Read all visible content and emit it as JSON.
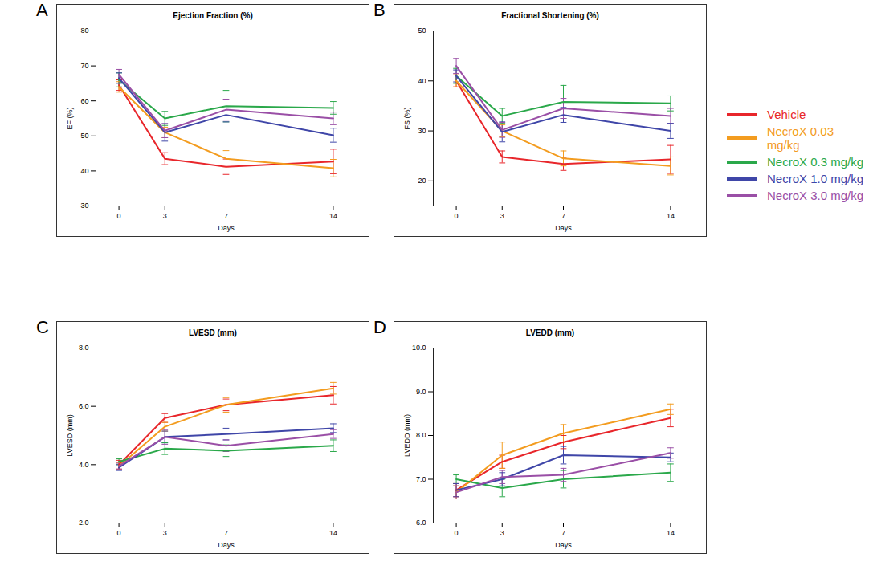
{
  "chart_data": [
    {
      "type": "line",
      "panel_label": "A",
      "title": "Ejection Fraction (%)",
      "x_label": "Days",
      "y_label": "EF (%)",
      "x": [
        0,
        3,
        7,
        14
      ],
      "xlim": [
        -1.5,
        15.5
      ],
      "xticks": [
        0,
        3,
        7,
        14
      ],
      "ylim": [
        30,
        80
      ],
      "yticks": [
        30,
        40,
        50,
        60,
        70,
        80
      ],
      "legend": "right",
      "series": [
        {
          "name": "Vehicle",
          "color": "#e8262b",
          "values": [
            64.5,
            43.5,
            41.2,
            42.7
          ],
          "errors": [
            1.5,
            1.7,
            2.2,
            3.5
          ]
        },
        {
          "name": "NecroX 0.03 mg/kg",
          "color": "#f39c1f",
          "values": [
            64.0,
            51.0,
            43.5,
            40.8
          ],
          "errors": [
            1.5,
            1.5,
            2.3,
            2.5
          ]
        },
        {
          "name": "NecroX 0.3 mg/kg",
          "color": "#2aa84a",
          "values": [
            66.0,
            55.0,
            58.5,
            58.0
          ],
          "errors": [
            2.0,
            2.0,
            4.5,
            1.8
          ]
        },
        {
          "name": "NecroX 1.0 mg/kg",
          "color": "#3f46a8",
          "values": [
            66.5,
            51.0,
            56.0,
            50.2
          ],
          "errors": [
            1.5,
            2.5,
            2.0,
            2.0
          ]
        },
        {
          "name": "NecroX 3.0 mg/kg",
          "color": "#9a4fa6",
          "values": [
            67.5,
            51.5,
            57.5,
            55.0
          ],
          "errors": [
            1.5,
            2.0,
            3.0,
            1.8
          ]
        }
      ]
    },
    {
      "type": "line",
      "panel_label": "B",
      "title": "Fractional Shortening (%)",
      "x_label": "Days",
      "y_label": "FS (%)",
      "x": [
        0,
        3,
        7,
        14
      ],
      "xlim": [
        -1.5,
        15.5
      ],
      "xticks": [
        0,
        3,
        7,
        14
      ],
      "ylim": [
        15,
        50
      ],
      "yticks": [
        20,
        30,
        40,
        50
      ],
      "series": [
        {
          "name": "Vehicle",
          "color": "#e8262b",
          "values": [
            40.0,
            24.8,
            23.4,
            24.3
          ],
          "errors": [
            1.2,
            1.2,
            1.3,
            2.8
          ]
        },
        {
          "name": "NecroX 0.03 mg/kg",
          "color": "#f39c1f",
          "values": [
            40.0,
            30.0,
            24.5,
            23.0
          ],
          "errors": [
            1.2,
            1.2,
            1.5,
            1.8
          ]
        },
        {
          "name": "NecroX 0.3 mg/kg",
          "color": "#2aa84a",
          "values": [
            41.0,
            33.0,
            35.8,
            35.5
          ],
          "errors": [
            1.5,
            1.5,
            3.3,
            1.5
          ]
        },
        {
          "name": "NecroX 1.0 mg/kg",
          "color": "#3f46a8",
          "values": [
            41.0,
            29.8,
            33.2,
            30.0
          ],
          "errors": [
            1.2,
            2.0,
            1.5,
            1.5
          ]
        },
        {
          "name": "NecroX 3.0 mg/kg",
          "color": "#9a4fa6",
          "values": [
            43.0,
            30.2,
            34.5,
            33.0
          ],
          "errors": [
            1.5,
            1.5,
            2.0,
            1.5
          ]
        }
      ]
    },
    {
      "type": "line",
      "panel_label": "C",
      "title": "LVESD (mm)",
      "x_label": "Days",
      "y_label": "LVESD (mm)",
      "x": [
        0,
        3,
        7,
        14
      ],
      "xlim": [
        -1.5,
        15.5
      ],
      "xticks": [
        0,
        3,
        7,
        14
      ],
      "ylim": [
        2,
        8
      ],
      "yticks": [
        2,
        4,
        6,
        8
      ],
      "series": [
        {
          "name": "Vehicle",
          "color": "#e8262b",
          "values": [
            4.0,
            5.6,
            6.05,
            6.38
          ],
          "errors": [
            0.15,
            0.15,
            0.2,
            0.3
          ]
        },
        {
          "name": "NecroX 0.03 mg/kg",
          "color": "#f39c1f",
          "values": [
            3.95,
            5.3,
            6.05,
            6.62
          ],
          "errors": [
            0.12,
            0.15,
            0.25,
            0.2
          ]
        },
        {
          "name": "NecroX 0.3 mg/kg",
          "color": "#2aa84a",
          "values": [
            4.1,
            4.55,
            4.48,
            4.65
          ],
          "errors": [
            0.1,
            0.2,
            0.2,
            0.2
          ]
        },
        {
          "name": "NecroX 1.0 mg/kg",
          "color": "#3f46a8",
          "values": [
            3.9,
            4.95,
            5.05,
            5.25
          ],
          "errors": [
            0.1,
            0.2,
            0.2,
            0.15
          ]
        },
        {
          "name": "NecroX 3.0 mg/kg",
          "color": "#9a4fa6",
          "values": [
            3.95,
            4.95,
            4.65,
            5.05
          ],
          "errors": [
            0.1,
            0.25,
            0.2,
            0.15
          ]
        }
      ]
    },
    {
      "type": "line",
      "panel_label": "D",
      "title": "LVEDD (mm)",
      "x_label": "Days",
      "y_label": "LVEDD (mm)",
      "x": [
        0,
        3,
        7,
        14
      ],
      "xlim": [
        -1.5,
        15.5
      ],
      "xticks": [
        0,
        3,
        7,
        14
      ],
      "ylim": [
        6,
        10
      ],
      "yticks": [
        6,
        7,
        8,
        9,
        10
      ],
      "series": [
        {
          "name": "Vehicle",
          "color": "#e8262b",
          "values": [
            6.75,
            7.4,
            7.85,
            8.4
          ],
          "errors": [
            0.15,
            0.15,
            0.15,
            0.2
          ]
        },
        {
          "name": "NecroX 0.03 mg/kg",
          "color": "#f39c1f",
          "values": [
            6.7,
            7.55,
            8.05,
            8.6
          ],
          "errors": [
            0.15,
            0.3,
            0.2,
            0.12
          ]
        },
        {
          "name": "NecroX 0.3 mg/kg",
          "color": "#2aa84a",
          "values": [
            7.0,
            6.8,
            7.0,
            7.15
          ],
          "errors": [
            0.1,
            0.2,
            0.2,
            0.2
          ]
        },
        {
          "name": "NecroX 1.0 mg/kg",
          "color": "#3f46a8",
          "values": [
            6.75,
            7.0,
            7.55,
            7.5
          ],
          "errors": [
            0.15,
            0.15,
            0.2,
            0.1
          ]
        },
        {
          "name": "NecroX 3.0 mg/kg",
          "color": "#9a4fa6",
          "values": [
            6.7,
            7.05,
            7.1,
            7.6
          ],
          "errors": [
            0.15,
            0.15,
            0.15,
            0.12
          ]
        }
      ]
    }
  ]
}
